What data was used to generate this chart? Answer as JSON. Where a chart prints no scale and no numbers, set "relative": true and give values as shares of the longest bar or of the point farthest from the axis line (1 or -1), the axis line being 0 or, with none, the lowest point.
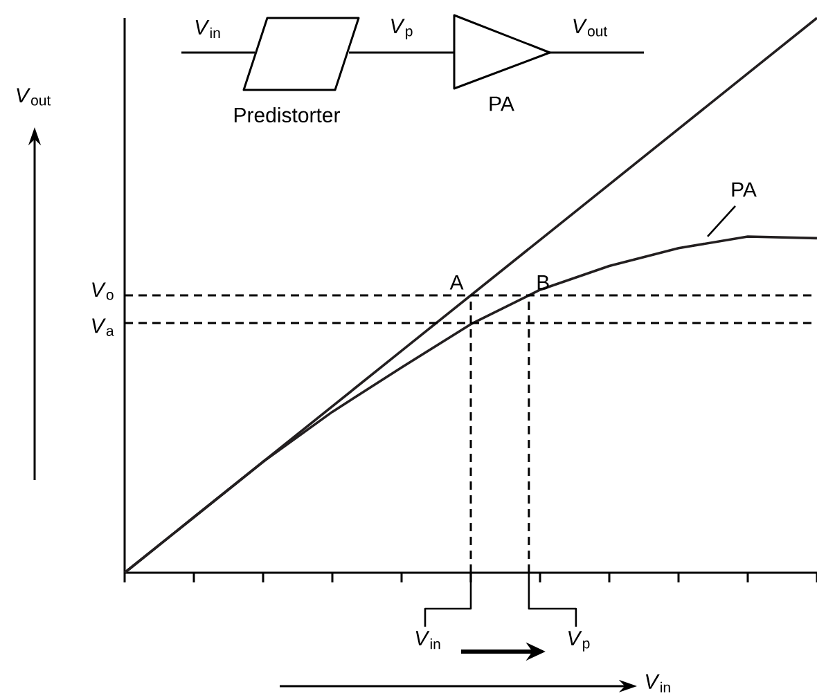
{
  "chart_data": {
    "type": "line",
    "relative": true,
    "xlabel": "*V*$_{in}$",
    "ylabel": "*V*$_{out}$",
    "categories": [
      null,
      null,
      null,
      null,
      null,
      null,
      null,
      null,
      null,
      null,
      null
    ],
    "grid": false,
    "legend": false,
    "marker": "none",
    "line_style": "solid",
    "series": [
      {
        "color": "#231f20",
        "values": [
          0,
          0.1,
          0.2,
          0.3,
          0.4,
          0.5,
          0.6,
          0.7,
          0.8,
          0.9,
          1
        ]
      },
      {
        "name": "PA",
        "color": "#231f20",
        "values": [
          0,
          0.1,
          0.2,
          0.29,
          0.37,
          0.448,
          0.51,
          0.553,
          0.585,
          0.606,
          0.603
        ]
      }
    ],
    "ref_lines": [
      {
        "axis": "y",
        "value": 0.5,
        "label": "*V*$_{o}$",
        "line_style": "dashed"
      },
      {
        "axis": "y",
        "value": 0.45,
        "label": "*V*$_{a}$",
        "line_style": "dashed"
      }
    ],
    "annotations": [
      {
        "text": "A",
        "y": 0.5
      },
      {
        "text": "B",
        "y": 0.5
      },
      "*V*$_{in}$",
      "*V*$_{p}$",
      "*V*$_{out}$",
      "Predistorter",
      "PA",
      "*V*$_{in}$",
      "*V*$_{p}$"
    ]
  }
}
